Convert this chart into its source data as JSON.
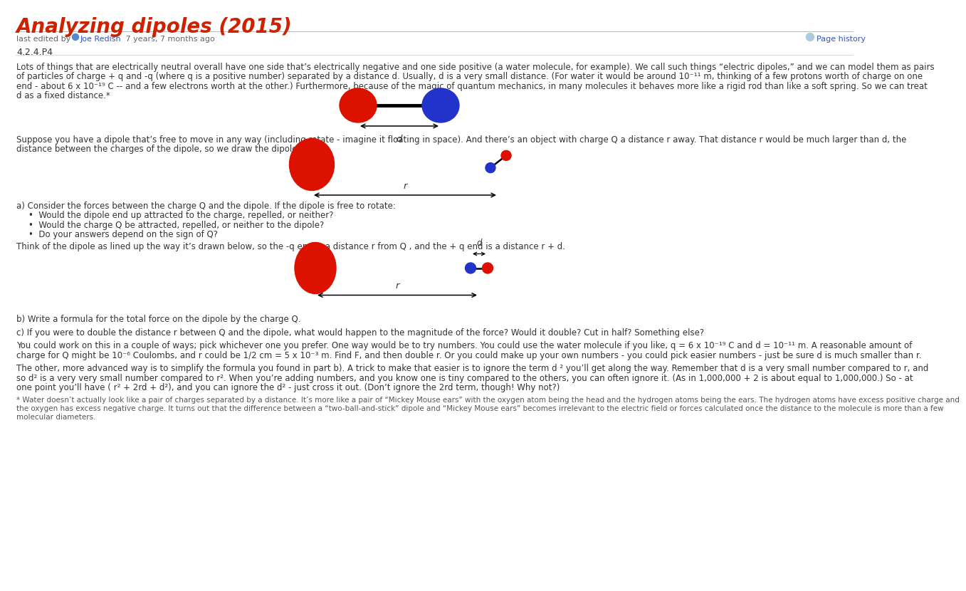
{
  "title": "Analyzing dipoles (2015)",
  "title_color": "#cc2200",
  "bg_color": "#ffffff",
  "section_label": "4.2.4.P4",
  "body_text_color": "#333333",
  "red_color": "#dd1100",
  "blue_color": "#2233cc",
  "link_color": "#3355bb",
  "divider_color": "#bbbbbb",
  "gray_text": "#666666",
  "footnote_color": "#555555",
  "para1_lines": [
    "Lots of things that are electrically neutral overall have one side that’s electrically negative and one side positive (a water molecule, for example). We call such things “electric dipoles,” and we can model them as pairs",
    "of particles of charge + q and -q (where q is a positive number) separated by a distance d. Usually, d is a very small distance. (For water it would be around 10⁻¹¹ m, thinking of a few protons worth of charge on one",
    "end - about 6 x 10⁻¹⁹ C -- and a few electrons worth at the other.) Furthermore, because of the magic of quantum mechanics, in many molecules it behaves more like a rigid rod than like a soft spring. So we can treat",
    "d as a fixed distance.*"
  ],
  "suppose_lines": [
    "Suppose you have a dipole that’s free to move in any way (including rotate - imagine it floating in space). And there’s an object with charge Q a distance r away. That distance r would be much larger than d, the",
    "distance between the charges of the dipole, so we draw the dipole small."
  ],
  "parta_text": "a) Consider the forces between the charge Q and the dipole. If the dipole is free to rotate:",
  "bullet1": "•  Would the dipole end up attracted to the charge, repelled, or neither?",
  "bullet2": "•  Would the charge Q be attracted, repelled, or neither to the dipole?",
  "bullet3": "•  Do your answers depend on the sign of Q?",
  "think_text": "Think of the dipole as lined up the way it’s drawn below, so the -q end is a distance r from Q , and the + q end is a distance r + d.",
  "partb_text": "b) Write a formula for the total force on the dipole by the charge Q.",
  "partc_text": "c) If you were to double the distance r between Q and the dipole, what would happen to the magnitude of the force? Would it double? Cut in half? Something else?",
  "numbers_lines": [
    "You could work on this in a couple of ways; pick whichever one you prefer. One way would be to try numbers. You could use the water molecule if you like, q = 6 x 10⁻¹⁹ C and d = 10⁻¹¹ m. A reasonable amount of",
    "charge for Q might be 10⁻⁶ Coulombs, and r could be 1/2 cm = 5 x 10⁻³ m. Find F, and then double r. Or you could make up your own numbers - you could pick easier numbers - just be sure d is much smaller than r."
  ],
  "advanced_lines": [
    "The other, more advanced way is to simplify the formula you found in part b). A trick to make that easier is to ignore the term d ² you’ll get along the way. Remember that d is a very small number compared to r, and",
    "so d² is a very very small number compared to r². When you’re adding numbers, and you know one is tiny compared to the others, you can often ignore it. (As in 1,000,000 + 2 is about equal to 1,000,000.) So - at",
    "one point you’ll have ( r² + 2rd + d²), and you can ignore the d² - just cross it out. (Don’t ignore the 2rd term, though! Why not?)"
  ],
  "footnote_lines": [
    "* Water doesn’t actually look like a pair of charges separated by a distance. It’s more like a pair of “Mickey Mouse ears” with the oxygen atom being the head and the hydrogen atoms being the ears. The hydrogen atoms have excess positive charge and",
    "the oxygen has excess negative charge. It turns out that the difference between a “two-ball-and-stick” dipole and “Mickey Mouse ears” becomes irrelevant to the electric field or forces calculated once the distance to the molecule is more than a few",
    "molecular diameters."
  ]
}
